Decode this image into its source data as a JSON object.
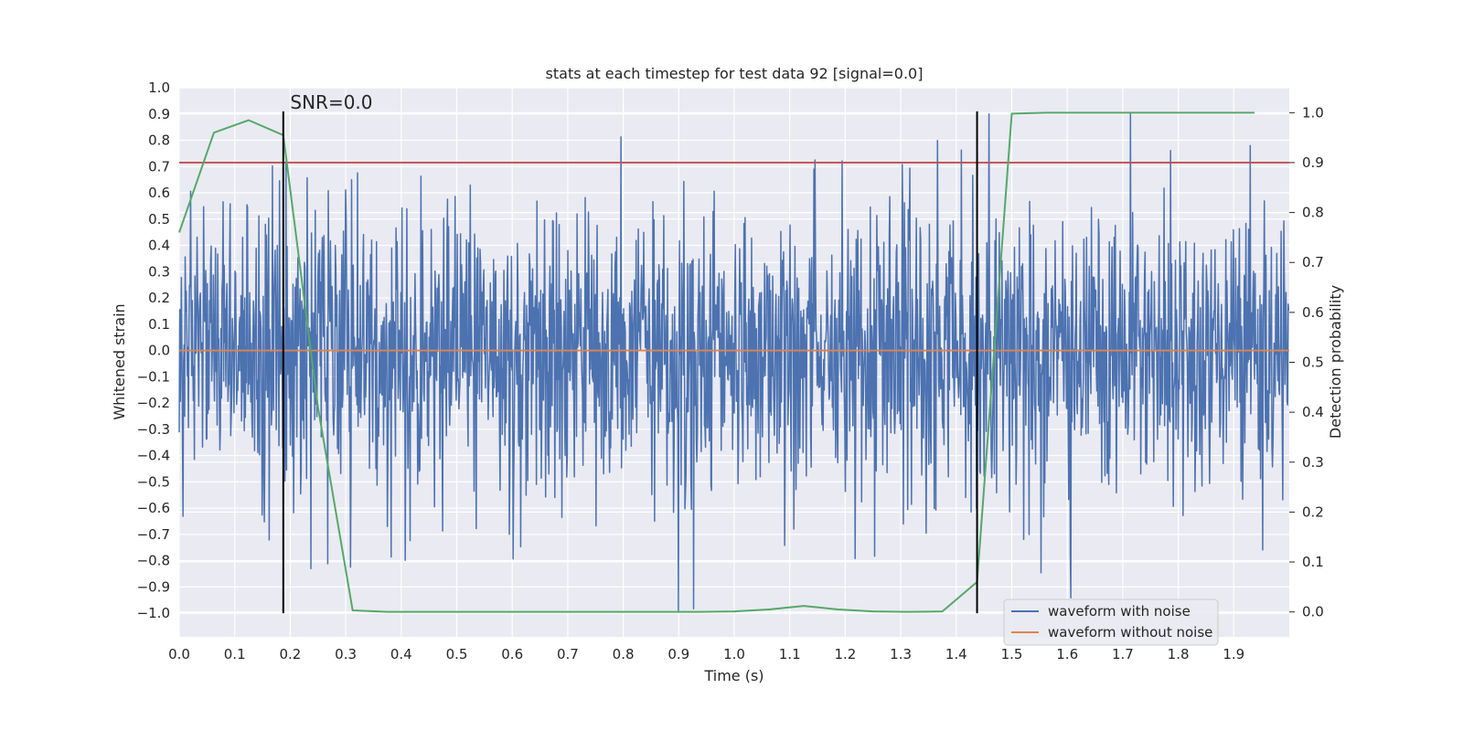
{
  "chart_data": {
    "type": "line",
    "title": "stats at each timestep for test data 92 [signal=0.0]",
    "xlabel": "Time (s)",
    "ylabel": "Whitened strain",
    "y2label": "Detection probability",
    "xlim": [
      0.0,
      2.0
    ],
    "ylim": [
      -1.09,
      1.0
    ],
    "y2lim": [
      -0.05,
      1.05
    ],
    "xticks": [
      0.0,
      0.1,
      0.2,
      0.3,
      0.4,
      0.5,
      0.6,
      0.7,
      0.8,
      0.9,
      1.0,
      1.1,
      1.2,
      1.3,
      1.4,
      1.5,
      1.6,
      1.7,
      1.8,
      1.9
    ],
    "yticks": [
      -1.0,
      -0.9,
      -0.8,
      -0.7,
      -0.6,
      -0.5,
      -0.4,
      -0.3,
      -0.2,
      -0.1,
      0.0,
      0.1,
      0.2,
      0.3,
      0.4,
      0.5,
      0.6,
      0.7,
      0.8,
      0.9,
      1.0
    ],
    "y2ticks": [
      0.0,
      0.1,
      0.2,
      0.3,
      0.4,
      0.5,
      0.6,
      0.7,
      0.8,
      0.9,
      1.0
    ],
    "grid": true,
    "legend_position": "lower-right",
    "colors": {
      "noisy": "#4c72b0",
      "clean": "#dd8452",
      "probability": "#55a868",
      "threshold": "#c44e52",
      "markers": "#000000",
      "background": "#eaeaf2"
    },
    "series": [
      {
        "name": "waveform with noise",
        "axis": "left",
        "style": "dense noise, amplitude mostly within ±0.6, spikes to ~±0.9; 2048 samples over 0–2 s"
      },
      {
        "name": "waveform without noise",
        "axis": "left",
        "x": [
          0.0,
          2.0
        ],
        "y": [
          0.0,
          0.0
        ]
      },
      {
        "axis": "right",
        "x": [
          0.0,
          0.0625,
          0.125,
          0.1875,
          0.25,
          0.3125,
          0.375,
          0.4375,
          0.5,
          0.5625,
          0.625,
          0.6875,
          0.75,
          0.8125,
          0.875,
          0.9375,
          1.0,
          1.0625,
          1.125,
          1.1875,
          1.25,
          1.3125,
          1.375,
          1.4375,
          1.5,
          1.5625,
          1.625,
          1.6875,
          1.75,
          1.8125,
          1.875,
          1.9375
        ],
        "y": [
          0.76,
          0.96,
          0.985,
          0.955,
          0.41,
          0.003,
          0.0,
          0.0,
          0.0,
          0.0,
          0.0,
          0.0,
          0.0,
          0.0,
          0.0,
          0.0,
          0.001,
          0.005,
          0.012,
          0.005,
          0.001,
          0.0,
          0.001,
          0.06,
          0.998,
          1.0,
          1.0,
          1.0,
          1.0,
          1.0,
          1.0,
          1.0
        ]
      },
      {
        "axis": "right",
        "type": "hline",
        "y": 0.9
      }
    ],
    "vlines": [
      {
        "x": 0.1875,
        "ymin": -1.0,
        "ymax": 0.91
      },
      {
        "x": 1.4375,
        "ymin": -1.0,
        "ymax": 0.91
      }
    ],
    "annotations": [
      {
        "text": "SNR=0.0",
        "x": 0.2,
        "y": 0.92
      }
    ]
  }
}
